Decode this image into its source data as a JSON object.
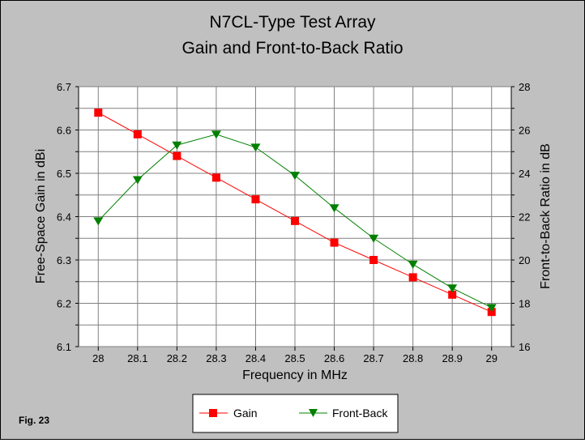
{
  "figure_label": "Fig. 23",
  "chart_data": {
    "type": "line",
    "title": "N7CL-Type Test Array",
    "subtitle": "Gain and Front-to-Back Ratio",
    "xlabel": "Frequency in MHz",
    "ylabel": "Free-Space Gain in dBi",
    "y2label": "Front-to-Back Ratio in dB",
    "x": [
      28,
      28.1,
      28.2,
      28.3,
      28.4,
      28.5,
      28.6,
      28.7,
      28.8,
      28.9,
      29
    ],
    "x_tick_labels": [
      "28",
      "28.1",
      "28.2",
      "28.3",
      "28.4",
      "28.5",
      "28.6",
      "28.7",
      "28.8",
      "28.9",
      "29"
    ],
    "xlim": [
      27.95,
      29.05
    ],
    "ylim": [
      6.1,
      6.7
    ],
    "y_ticks": [
      "6.1",
      "6.2",
      "6.3",
      "6.4",
      "6.5",
      "6.6",
      "6.7"
    ],
    "y2lim": [
      16,
      28
    ],
    "y2_ticks": [
      "16",
      "18",
      "20",
      "22",
      "24",
      "26",
      "28"
    ],
    "grid": true,
    "legend_position": "bottom-center",
    "series": [
      {
        "name": "Gain",
        "axis": "left",
        "color": "#ff0000",
        "marker": "square",
        "values": [
          6.64,
          6.59,
          6.54,
          6.49,
          6.44,
          6.39,
          6.34,
          6.3,
          6.26,
          6.22,
          6.18
        ]
      },
      {
        "name": "Front-Back",
        "axis": "right",
        "color": "#008000",
        "marker": "triangle-down",
        "values": [
          21.8,
          23.7,
          25.3,
          25.8,
          25.2,
          23.9,
          22.4,
          21.0,
          19.8,
          18.7,
          17.8
        ]
      }
    ]
  }
}
